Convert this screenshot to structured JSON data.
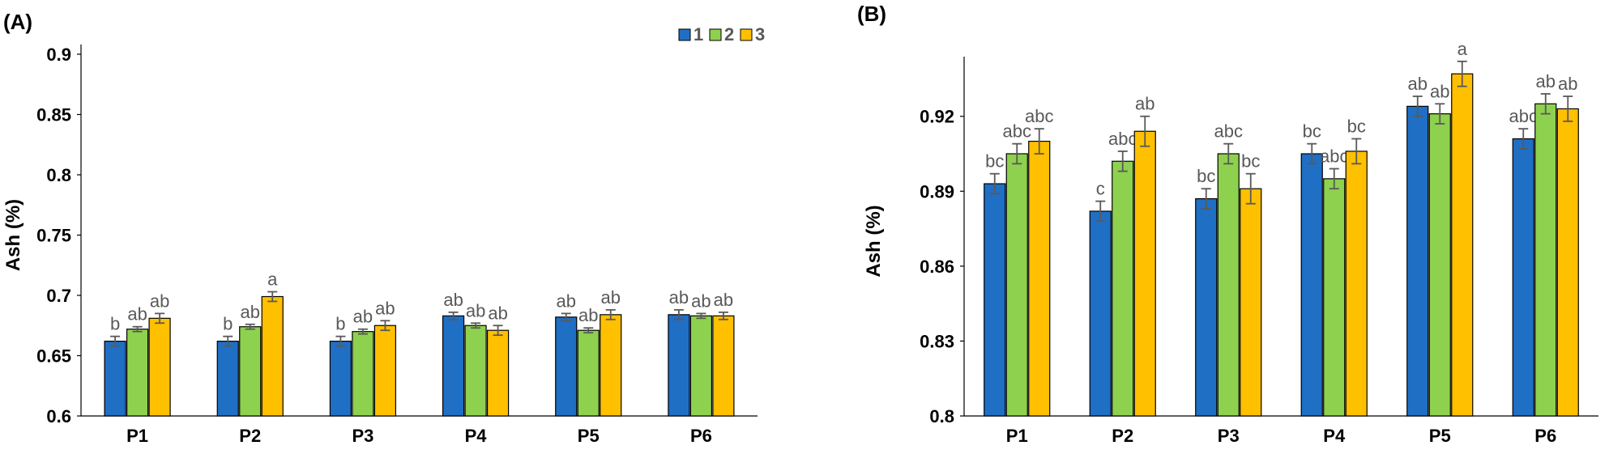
{
  "colors": {
    "series1": "#1F6FC5",
    "series2": "#8ED14F",
    "series3": "#FFC000",
    "error": "#595959"
  },
  "legend": {
    "items": [
      "1",
      "2",
      "3"
    ]
  },
  "chart_data": [
    {
      "panel": "(A)",
      "type": "bar",
      "ylabel": "Ash (%)",
      "ylim": [
        0.6,
        0.9
      ],
      "yticks": [
        "0.6",
        "0.65",
        "0.7",
        "0.75",
        "0.8",
        "0.85",
        "0.9"
      ],
      "categories": [
        "P1",
        "P2",
        "P3",
        "P4",
        "P5",
        "P6"
      ],
      "legend_position": "top-right",
      "series": [
        {
          "name": "1",
          "values": [
            0.662,
            0.662,
            0.662,
            0.683,
            0.682,
            0.684
          ],
          "errors": [
            0.004,
            0.004,
            0.004,
            0.003,
            0.003,
            0.004
          ],
          "letters": [
            "b",
            "b",
            "b",
            "ab",
            "ab",
            "ab"
          ]
        },
        {
          "name": "2",
          "values": [
            0.672,
            0.674,
            0.67,
            0.675,
            0.671,
            0.683
          ],
          "errors": [
            0.002,
            0.002,
            0.002,
            0.002,
            0.002,
            0.002
          ],
          "letters": [
            "ab",
            "ab",
            "ab",
            "ab",
            "ab",
            "ab"
          ]
        },
        {
          "name": "3",
          "values": [
            0.681,
            0.699,
            0.675,
            0.671,
            0.684,
            0.683
          ],
          "errors": [
            0.004,
            0.004,
            0.004,
            0.004,
            0.004,
            0.003
          ],
          "letters": [
            "ab",
            "a",
            "ab",
            "ab",
            "ab",
            "ab"
          ]
        }
      ]
    },
    {
      "panel": "(B)",
      "type": "bar",
      "ylabel": "Ash (%)",
      "ylim": [
        0.8,
        0.94
      ],
      "yticks": [
        "0.8",
        "0.83",
        "0.86",
        "0.89",
        "0.92"
      ],
      "categories": [
        "P1",
        "P2",
        "P3",
        "P4",
        "P5",
        "P6"
      ],
      "series": [
        {
          "name": "1",
          "values": [
            0.893,
            0.882,
            0.887,
            0.905,
            0.924,
            0.911
          ],
          "errors": [
            0.004,
            0.004,
            0.004,
            0.004,
            0.004,
            0.004
          ],
          "letters": [
            "bc",
            "c",
            "bc",
            "bc",
            "ab",
            "abc"
          ]
        },
        {
          "name": "2",
          "values": [
            0.905,
            0.902,
            0.905,
            0.895,
            0.921,
            0.925
          ],
          "errors": [
            0.004,
            0.004,
            0.004,
            0.004,
            0.004,
            0.004
          ],
          "letters": [
            "abc",
            "abc",
            "abc",
            "abc",
            "ab",
            "ab"
          ]
        },
        {
          "name": "3",
          "values": [
            0.91,
            0.914,
            0.891,
            0.906,
            0.937,
            0.923
          ],
          "errors": [
            0.005,
            0.006,
            0.006,
            0.005,
            0.005,
            0.005
          ],
          "letters": [
            "abc",
            "ab",
            "bc",
            "bc",
            "a",
            "ab"
          ]
        }
      ]
    }
  ]
}
